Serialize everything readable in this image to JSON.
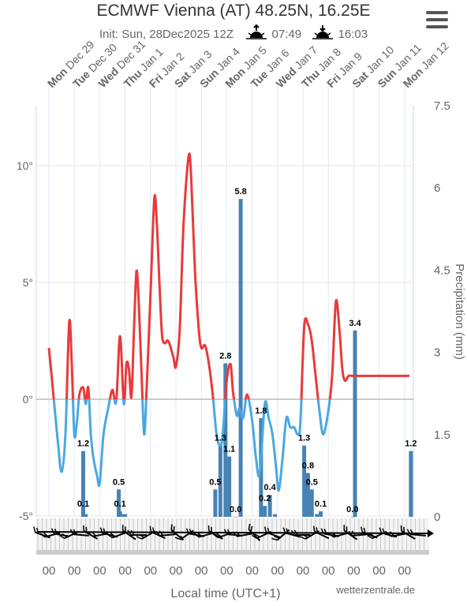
{
  "title": "ECMWF Vienna (AT) 48.25N, 16.25E",
  "subtitle": {
    "init": "Init: Sun, 28Dec2025 12Z",
    "sunrise": "07:49",
    "sunset": "16:03",
    "sunrise_icon": "sunrise-icon",
    "sunset_icon": "sunset-icon"
  },
  "menu_icon": "hamburger-menu-icon",
  "credit": "wetterzentrale.de",
  "chart_data": {
    "type": "line",
    "xlabel": "Local time (UTC+1)",
    "ylabel_right": "Precipitation (mm)",
    "x_day_labels": [
      {
        "day": "Mon",
        "date": "Dec 29"
      },
      {
        "day": "Tue",
        "date": "Dec 30"
      },
      {
        "day": "Wed",
        "date": "Dec 31"
      },
      {
        "day": "Thu",
        "date": "Jan 1"
      },
      {
        "day": "Fri",
        "date": "Jan 2"
      },
      {
        "day": "Sat",
        "date": "Jan 3"
      },
      {
        "day": "Sun",
        "date": "Jan 4"
      },
      {
        "day": "Mon",
        "date": "Jan 5"
      },
      {
        "day": "Tue",
        "date": "Jan 6"
      },
      {
        "day": "Wed",
        "date": "Jan 7"
      },
      {
        "day": "Thu",
        "date": "Jan 8"
      },
      {
        "day": "Fri",
        "date": "Jan 9"
      },
      {
        "day": "Sat",
        "date": "Jan 10"
      },
      {
        "day": "Sun",
        "date": "Jan 11"
      },
      {
        "day": "Mon",
        "date": "Jan 12"
      }
    ],
    "x_bottom_labels": [
      "00",
      "00",
      "00",
      "00",
      "00",
      "00",
      "00",
      "00",
      "00",
      "00",
      "00",
      "00",
      "00",
      "00",
      "00"
    ],
    "y_left": {
      "ticks": [
        -5,
        0,
        5,
        10
      ],
      "tick_labels": [
        "-5°",
        "0°",
        "5°",
        "10°"
      ],
      "range": [
        -5,
        12.5
      ]
    },
    "y_right": {
      "ticks": [
        0,
        1.5,
        3,
        4.5,
        6,
        7.5
      ],
      "tick_labels": [
        "0",
        "1.5",
        "3",
        "4.5",
        "6",
        "7.5"
      ],
      "range": [
        0,
        7.5
      ]
    },
    "grid": true,
    "temperature_series": {
      "color_above_zero": "#e83a3a",
      "color_below_zero": "#4aa8e0",
      "x_days": [
        0.0,
        0.15,
        0.35,
        0.5,
        0.65,
        0.8,
        0.9,
        1.0,
        1.1,
        1.2,
        1.35,
        1.45,
        1.55,
        1.65,
        1.75,
        1.9,
        2.0,
        2.15,
        2.35,
        2.5,
        2.65,
        2.8,
        2.95,
        3.05,
        3.15,
        3.25,
        3.35,
        3.45,
        3.55,
        3.65,
        3.75,
        3.85,
        4.0,
        4.15,
        4.25,
        4.35,
        4.45,
        4.55,
        4.7,
        4.9,
        5.0,
        5.15,
        5.3,
        5.5,
        5.6,
        5.75,
        5.9,
        6.0,
        6.15,
        6.3,
        6.45,
        6.6,
        6.75,
        6.85,
        7.0,
        7.15,
        7.25,
        7.4,
        7.5,
        7.65,
        7.8,
        8.0,
        8.15,
        8.3,
        8.5,
        8.65,
        8.8,
        8.95,
        9.05,
        9.2,
        9.35,
        9.5,
        9.65,
        9.8,
        9.9,
        10.05,
        10.2,
        10.35,
        10.5,
        10.65,
        10.8,
        11.0,
        11.15,
        11.3,
        11.45,
        11.55,
        11.65,
        11.8,
        11.95,
        12.1,
        12.25,
        12.4,
        12.55,
        12.7,
        12.85,
        13.0,
        13.15,
        13.3,
        13.45,
        13.6,
        13.75,
        13.9,
        14.0,
        14.2
      ],
      "values": [
        2.2,
        0.5,
        -1.8,
        -3.1,
        -1.5,
        3.3,
        1.5,
        -1.5,
        -1.0,
        0.2,
        0.5,
        -0.2,
        0.5,
        -1.5,
        -2.5,
        -3.3,
        -3.6,
        -1.5,
        -0.3,
        0.4,
        -0.1,
        2.7,
        -0.2,
        1.5,
        1.3,
        0.1,
        3.0,
        5.5,
        3.8,
        1.0,
        -1.5,
        0.5,
        4.5,
        8.6,
        7.5,
        5.0,
        2.8,
        2.4,
        2.5,
        1.8,
        1.4,
        3.0,
        7.5,
        10.4,
        9.5,
        5.5,
        3.0,
        2.2,
        2.3,
        1.5,
        0.2,
        -1.5,
        -2.0,
        -1.4,
        0.8,
        1.5,
        0.3,
        -0.7,
        -0.4,
        -0.8,
        0.2,
        -0.9,
        -2.5,
        -3.2,
        -0.2,
        -0.8,
        -1.5,
        -3.0,
        -3.9,
        -2.5,
        -0.8,
        -1.2,
        -1.2,
        -1.5,
        -1.0,
        3.1,
        3.2,
        2.5,
        1.0,
        -0.5,
        -1.5,
        -0.5,
        1.0,
        4.2,
        2.8,
        1.3,
        0.8,
        1.0,
        1.0,
        1.0,
        1.0,
        1.0,
        1.0,
        1.0,
        1.0,
        1.0,
        1.0,
        1.0,
        1.0,
        1.0,
        1.0,
        1.0,
        1.0,
        1.0
      ]
    },
    "precipitation_series": {
      "color": "#4682b4",
      "bars": [
        {
          "x_days": 1.35,
          "value": 1.2,
          "label": "1.2"
        },
        {
          "x_days": 1.35,
          "value": 0.1,
          "label": "0.1"
        },
        {
          "x_days": 1.45,
          "value": 0.05,
          "label": ""
        },
        {
          "x_days": 2.75,
          "value": 0.5,
          "label": "0.5"
        },
        {
          "x_days": 2.8,
          "value": 0.1,
          "label": "0.1"
        },
        {
          "x_days": 2.9,
          "value": 0.05,
          "label": ""
        },
        {
          "x_days": 3.0,
          "value": 0.05,
          "label": ""
        },
        {
          "x_days": 6.55,
          "value": 0.5,
          "label": "0.5"
        },
        {
          "x_days": 6.75,
          "value": 1.3,
          "label": "1.3"
        },
        {
          "x_days": 6.95,
          "value": 2.8,
          "label": "2.8"
        },
        {
          "x_days": 7.1,
          "value": 1.1,
          "label": "1.1"
        },
        {
          "x_days": 7.35,
          "value": 0.0,
          "label": "0.0"
        },
        {
          "x_days": 7.55,
          "value": 5.8,
          "label": "5.8"
        },
        {
          "x_days": 8.35,
          "value": 1.8,
          "label": "1.8"
        },
        {
          "x_days": 8.5,
          "value": 0.2,
          "label": "0.2"
        },
        {
          "x_days": 8.7,
          "value": 0.4,
          "label": "0.4"
        },
        {
          "x_days": 8.9,
          "value": 0.05,
          "label": ""
        },
        {
          "x_days": 10.05,
          "value": 1.3,
          "label": "1.3"
        },
        {
          "x_days": 10.2,
          "value": 0.8,
          "label": "0.8"
        },
        {
          "x_days": 10.35,
          "value": 0.5,
          "label": "0.5"
        },
        {
          "x_days": 10.55,
          "value": 0.05,
          "label": ""
        },
        {
          "x_days": 10.7,
          "value": 0.1,
          "label": "0.1"
        },
        {
          "x_days": 11.95,
          "value": 0.0,
          "label": "0.0"
        },
        {
          "x_days": 12.05,
          "value": 3.4,
          "label": "3.4"
        },
        {
          "x_days": 14.25,
          "value": 1.2,
          "label": "1.2"
        }
      ]
    },
    "wind_barbs_row": true
  }
}
